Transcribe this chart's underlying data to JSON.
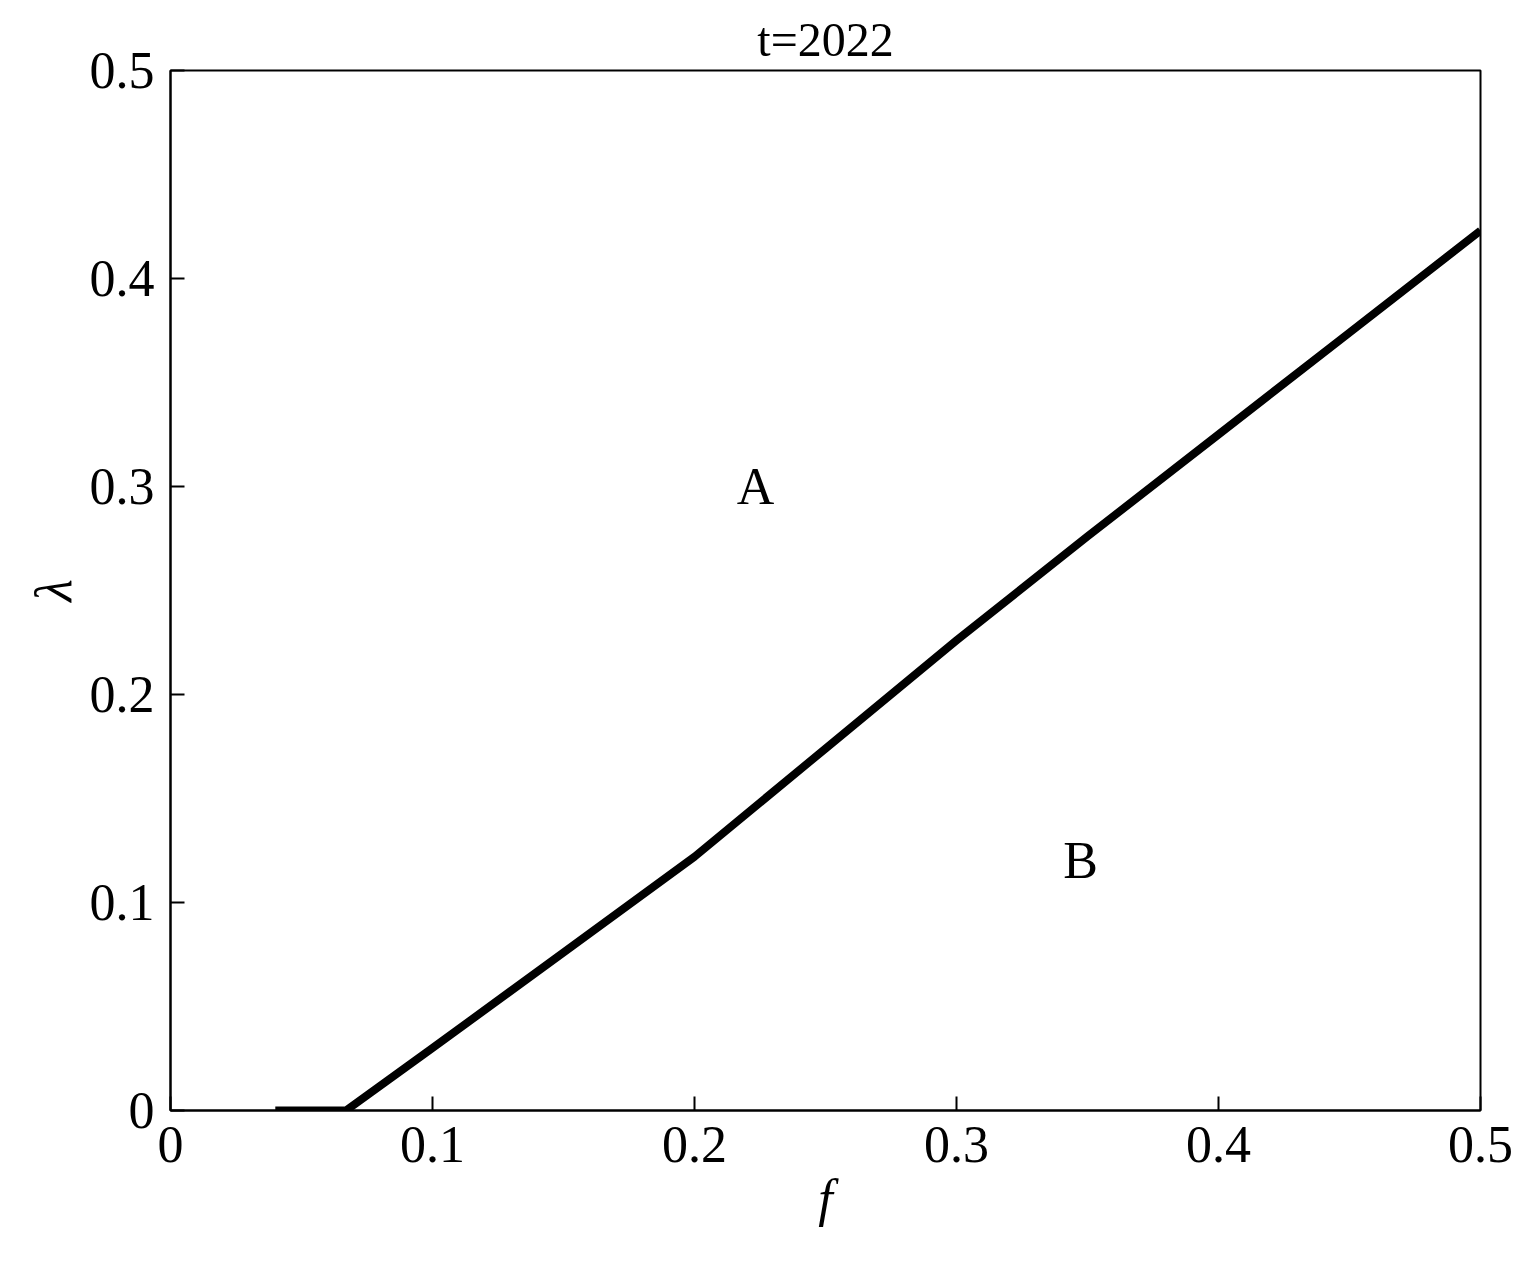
{
  "chart_data": {
    "type": "line",
    "title": "t=2022",
    "xlabel": "f",
    "ylabel": "λ",
    "x": [
      0.04,
      0.067,
      0.1,
      0.15,
      0.2,
      0.25,
      0.3,
      0.35,
      0.4,
      0.45,
      0.5
    ],
    "series": [
      {
        "color": "#000000",
        "values": [
          0,
          0,
          0.03,
          0.076,
          0.122,
          0.174,
          0.226,
          0.276,
          0.325,
          0.374,
          0.423
        ]
      }
    ],
    "xlim": [
      0,
      0.5
    ],
    "ylim": [
      0,
      0.5
    ],
    "xticks": [
      0,
      0.1,
      0.2,
      0.3,
      0.4,
      0.5
    ],
    "yticks": [
      0,
      0.1,
      0.2,
      0.3,
      0.4,
      0.5
    ],
    "annotations": [
      "A",
      "B"
    ],
    "grid": false,
    "line_style": "solid",
    "marker": "none"
  }
}
